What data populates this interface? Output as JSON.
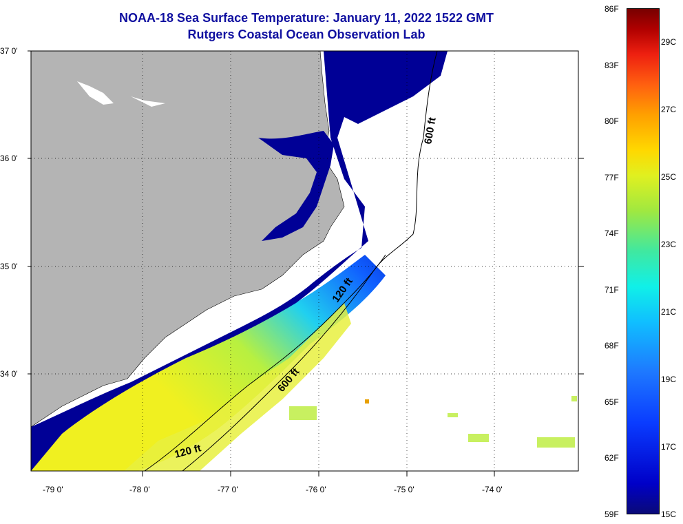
{
  "title_line1": "NOAA-18 Sea Surface Temperature:  January 11, 2022 1522 GMT",
  "title_line2": "Rutgers Coastal Ocean Observation Lab",
  "lat_labels": [
    "37 0'",
    "36 0'",
    "35 0'",
    "34 0'"
  ],
  "lon_labels": [
    "-79 0'",
    "-78 0'",
    "-77 0'",
    "-76 0'",
    "-75 0'",
    "-74 0'"
  ],
  "contour_labels": [
    "600 ft",
    "120 ft",
    "600 ft",
    "120 ft"
  ],
  "colorbar": {
    "f_labels": [
      "86F",
      "83F",
      "80F",
      "77F",
      "74F",
      "71F",
      "68F",
      "65F",
      "62F",
      "59F"
    ],
    "c_labels": [
      "29C",
      "27C",
      "25C",
      "23C",
      "21C",
      "19C",
      "17C",
      "15C"
    ]
  },
  "colors": {
    "title": "#1010a0",
    "land": "#b4b4b4",
    "cold_water": "#000096",
    "no_data": "#ffffff"
  }
}
